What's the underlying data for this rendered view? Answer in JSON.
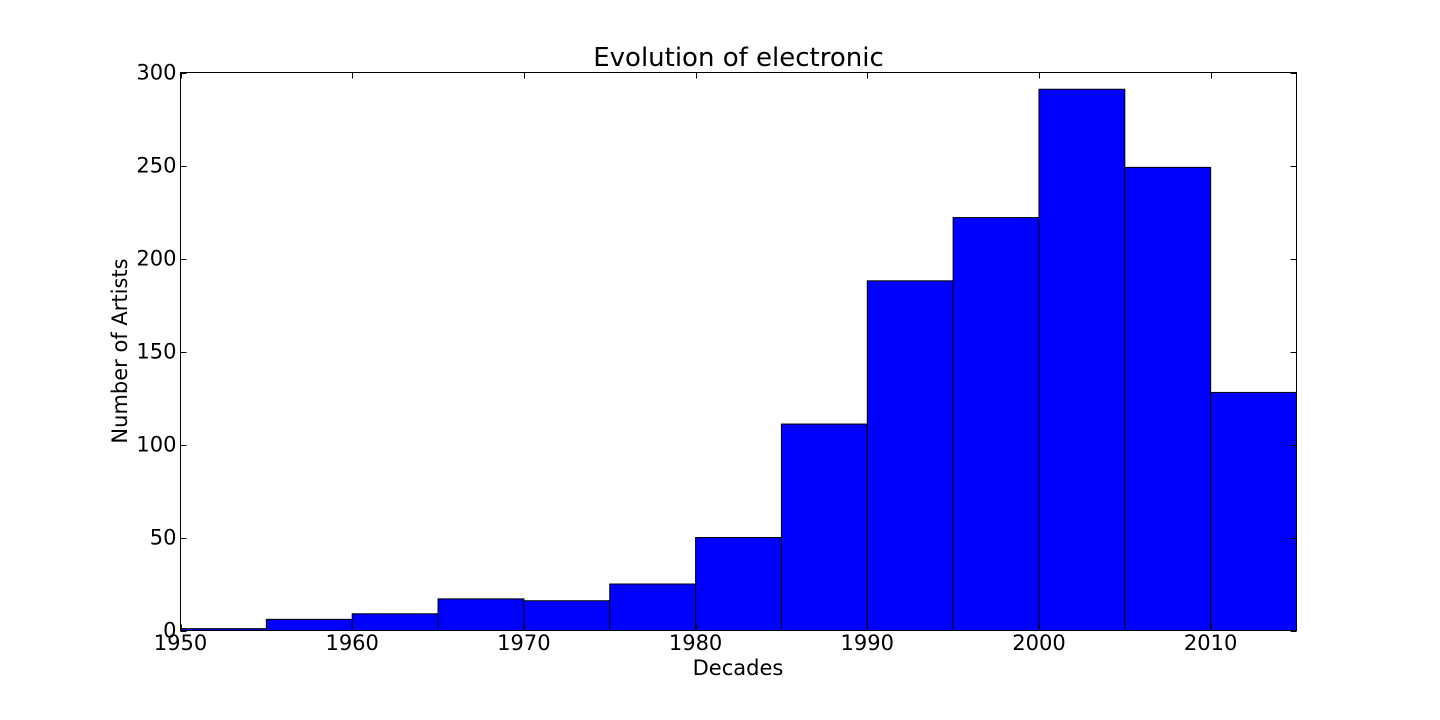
{
  "chart_data": {
    "type": "bar",
    "title": "Evolution of electronic",
    "xlabel": "Decades",
    "ylabel": "Number of Artists",
    "bin_edges": [
      1950,
      1955,
      1960,
      1965,
      1970,
      1975,
      1980,
      1985,
      1990,
      1995,
      2000,
      2005,
      2010,
      2015
    ],
    "values": [
      1,
      6,
      9,
      17,
      16,
      25,
      50,
      111,
      188,
      222,
      291,
      249,
      128
    ],
    "xlim": [
      1950,
      2015
    ],
    "ylim": [
      0,
      300
    ],
    "xticks": [
      1950,
      1960,
      1970,
      1980,
      1990,
      2000,
      2010
    ],
    "yticks": [
      0,
      50,
      100,
      150,
      200,
      250,
      300
    ],
    "bar_color": "#0000ff",
    "edge_color": "#000000",
    "grid": false,
    "legend": "none"
  }
}
